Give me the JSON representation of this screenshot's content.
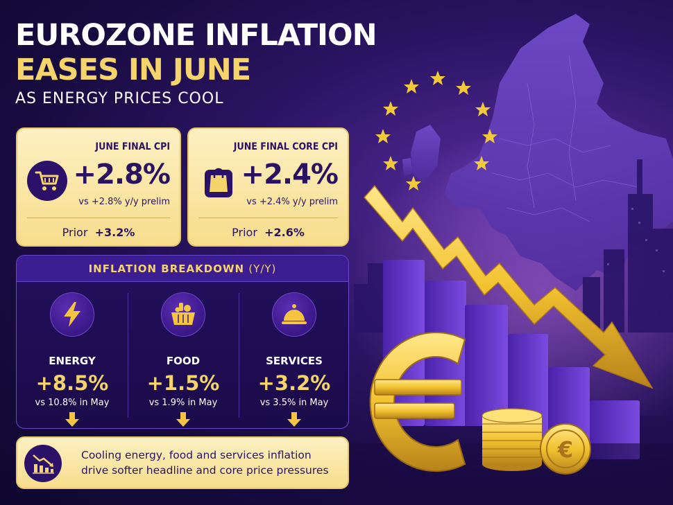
{
  "headline": {
    "line1": "EUROZONE INFLATION",
    "line2": "EASES IN JUNE",
    "line3": "AS ENERGY PRICES COOL"
  },
  "cards": [
    {
      "label": "JUNE FINAL CPI",
      "value": "+2.8%",
      "sub": "vs +2.8% y/y prelim",
      "prior_label": "Prior",
      "prior_value": "+3.2%",
      "icon": "shopping-cart-icon"
    },
    {
      "label": "JUNE FINAL CORE CPI",
      "value": "+2.4%",
      "sub": "vs +2.4% y/y prelim",
      "prior_label": "Prior",
      "prior_value": "+2.6%",
      "icon": "shopping-bag-icon"
    }
  ],
  "breakdown": {
    "title": "INFLATION BREAKDOWN",
    "title_suffix": "(Y/Y)",
    "items": [
      {
        "name": "ENERGY",
        "value": "+8.5%",
        "compare": "vs 10.8% in May",
        "icon": "lightning-bolt-icon",
        "trend": "down"
      },
      {
        "name": "FOOD",
        "value": "+1.5%",
        "compare": "vs 1.9% in May",
        "icon": "grocery-basket-icon",
        "trend": "down"
      },
      {
        "name": "SERVICES",
        "value": "+3.2%",
        "compare": "vs 3.5% in May",
        "icon": "service-bell-icon",
        "trend": "down"
      }
    ]
  },
  "banner": {
    "line1": "Cooling energy, food and services inflation",
    "line2": "drive softer headline and core price pressures",
    "icon": "declining-chart-icon"
  },
  "colors": {
    "background": "#1c0c4e",
    "gold": "#f5d56b",
    "card": "#fbe7a8",
    "purple_dark": "#2a1260"
  }
}
